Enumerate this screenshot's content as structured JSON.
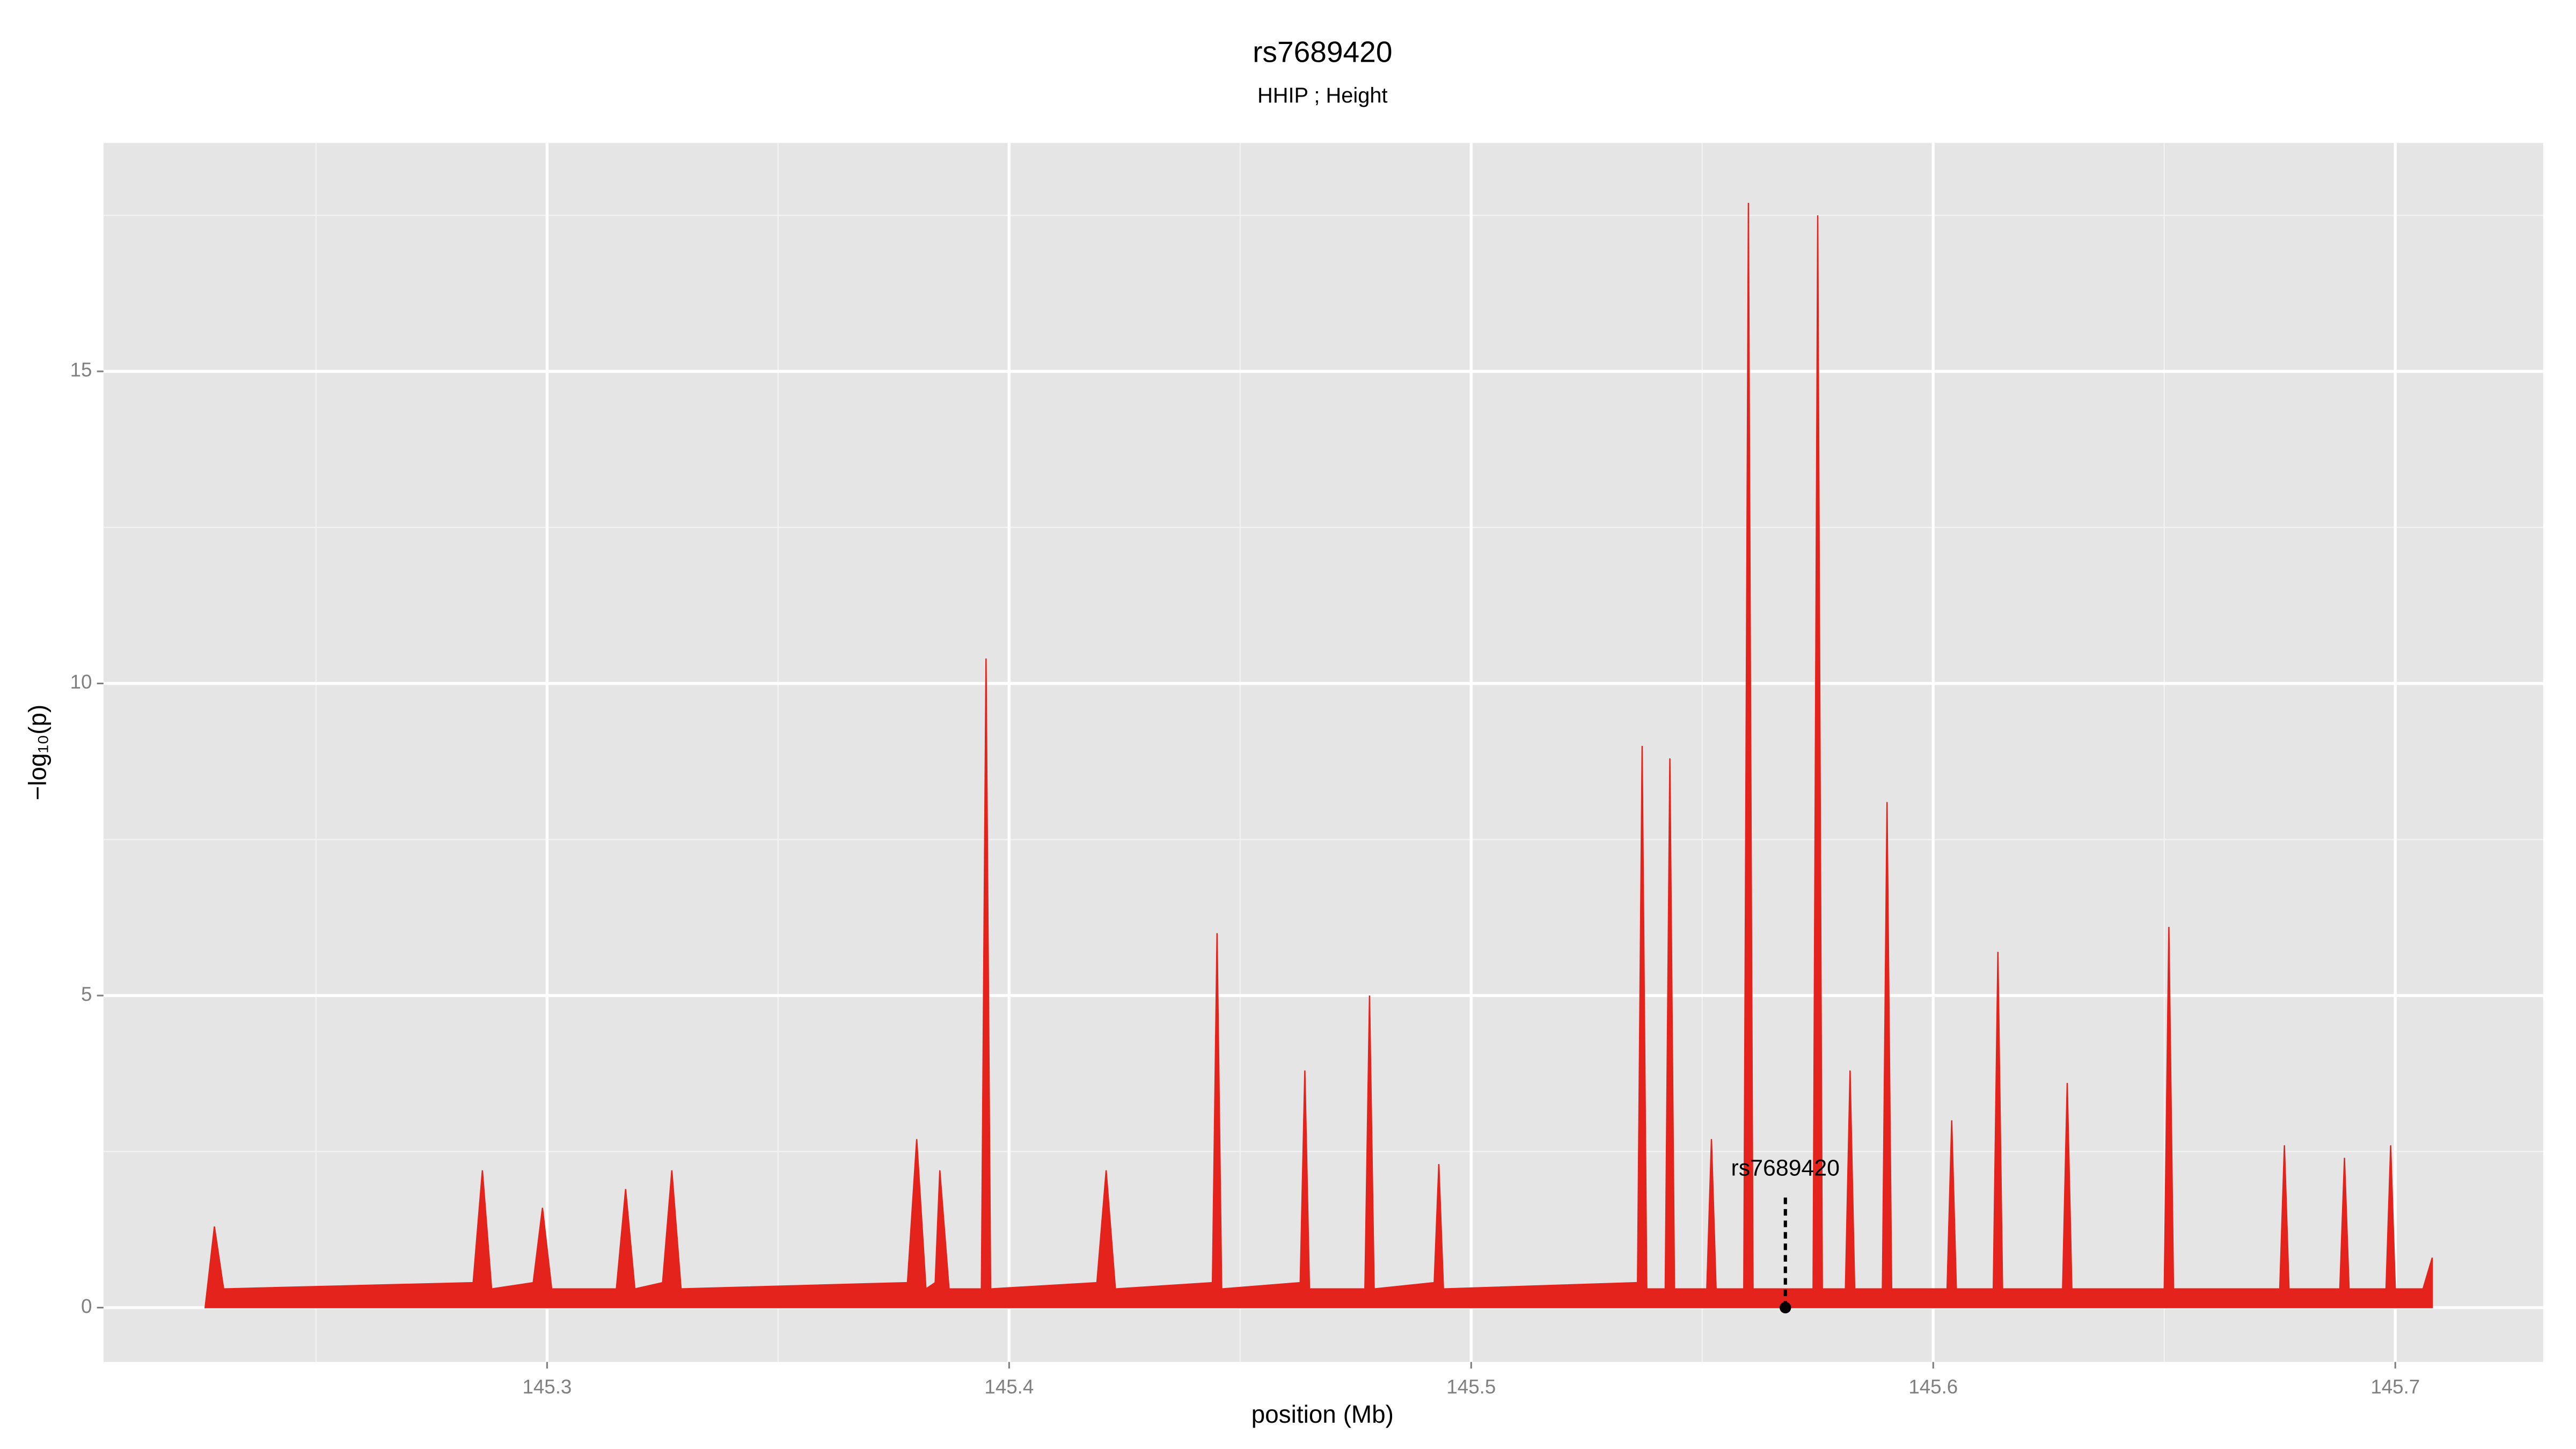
{
  "chart_data": {
    "type": "area",
    "title": "rs7689420",
    "subtitle": "HHIP ; Height",
    "x_label": "position (Mb)",
    "y_label": "−log₁₀(p)",
    "xlim": [
      145.204,
      145.732
    ],
    "ylim": [
      -0.87,
      18.66
    ],
    "xticks": [
      145.3,
      145.4,
      145.5,
      145.6,
      145.7
    ],
    "yticks": [
      0,
      5,
      10,
      15
    ],
    "x_minor_ticks": [
      145.25,
      145.35,
      145.45,
      145.55,
      145.65
    ],
    "y_minor_ticks": [
      2.5,
      7.5,
      12.5,
      17.5
    ],
    "grid": true,
    "series": [
      {
        "color": "#e3231c",
        "x": [
          145.226,
          145.228,
          145.23,
          145.284,
          145.286,
          145.288,
          145.297,
          145.299,
          145.301,
          145.315,
          145.317,
          145.319,
          145.325,
          145.327,
          145.329,
          145.378,
          145.38,
          145.382,
          145.384,
          145.385,
          145.387,
          145.394,
          145.395,
          145.396,
          145.419,
          145.421,
          145.423,
          145.444,
          145.445,
          145.446,
          145.463,
          145.464,
          145.465,
          145.477,
          145.478,
          145.479,
          145.492,
          145.493,
          145.494,
          145.536,
          145.537,
          145.538,
          145.542,
          145.543,
          145.544,
          145.551,
          145.552,
          145.553,
          145.559,
          145.56,
          145.561,
          145.574,
          145.575,
          145.576,
          145.581,
          145.582,
          145.583,
          145.589,
          145.59,
          145.591,
          145.603,
          145.604,
          145.605,
          145.613,
          145.614,
          145.615,
          145.628,
          145.629,
          145.63,
          145.65,
          145.651,
          145.652,
          145.675,
          145.676,
          145.677,
          145.688,
          145.689,
          145.69,
          145.698,
          145.699,
          145.7,
          145.706,
          145.708
        ],
        "values": [
          0,
          1.3,
          0.3,
          0.4,
          2.2,
          0.3,
          0.4,
          1.6,
          0.3,
          0.3,
          1.9,
          0.3,
          0.4,
          2.2,
          0.3,
          0.4,
          2.7,
          0.3,
          0.4,
          2.2,
          0.3,
          0.3,
          10.4,
          0.3,
          0.4,
          2.2,
          0.3,
          0.4,
          6.0,
          0.3,
          0.4,
          3.8,
          0.3,
          0.3,
          5.0,
          0.3,
          0.4,
          2.3,
          0.3,
          0.4,
          9.0,
          0.3,
          0.3,
          8.8,
          0.3,
          0.3,
          2.7,
          0.3,
          0.3,
          17.7,
          0.3,
          0.3,
          17.5,
          0.3,
          0.3,
          3.8,
          0.3,
          0.3,
          8.1,
          0.3,
          0.3,
          3.0,
          0.3,
          0.3,
          5.7,
          0.3,
          0.3,
          3.6,
          0.3,
          0.3,
          6.1,
          0.3,
          0.3,
          2.6,
          0.3,
          0.3,
          2.4,
          0.3,
          0.3,
          2.6,
          0.3,
          0.3,
          0.8
        ]
      }
    ],
    "annotation": {
      "label": "rs7689420",
      "x": 145.568,
      "y": 0
    }
  }
}
